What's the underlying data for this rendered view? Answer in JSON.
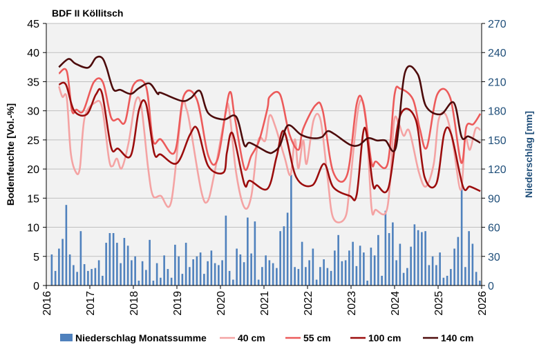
{
  "chart_data": {
    "type": "bar+line",
    "title": "BDF II Köllitsch",
    "ylabel": "Bodenfeuchte [Vol.-%]",
    "y2label": "Niederschlag [mm]",
    "xlim": [
      2016,
      2026
    ],
    "ylim": [
      0,
      45
    ],
    "y2lim": [
      0,
      270
    ],
    "x_ticks": [
      "2016",
      "2017",
      "2018",
      "2019",
      "2020",
      "2021",
      "2022",
      "2023",
      "2024",
      "2025",
      "2026"
    ],
    "y_ticks": [
      "0",
      "5",
      "10",
      "15",
      "20",
      "25",
      "30",
      "35",
      "40",
      "45"
    ],
    "y2_ticks": [
      "0",
      "30",
      "60",
      "90",
      "120",
      "150",
      "180",
      "210",
      "240",
      "270"
    ],
    "grid": true,
    "legend_placement": "bottom",
    "colors": {
      "plot_bg": "#f2f2f2",
      "grid": "#bfbfbf",
      "bars": "#4f81bd",
      "y2_axis": "#1f4e79"
    },
    "bars": {
      "name": "Niederschlag Monatssumme",
      "axis": "right",
      "start_month": "2016-02",
      "values": [
        32,
        15,
        38,
        48,
        83,
        32,
        21,
        14,
        56,
        22,
        15,
        17,
        18,
        26,
        10,
        44,
        54,
        54,
        44,
        23,
        49,
        41,
        26,
        30,
        5,
        25,
        16,
        47,
        5,
        23,
        8,
        31,
        17,
        8,
        42,
        30,
        12,
        44,
        19,
        27,
        30,
        34,
        12,
        25,
        36,
        23,
        21,
        26,
        72,
        15,
        6,
        38,
        32,
        24,
        70,
        33,
        66,
        6,
        19,
        31,
        26,
        23,
        18,
        56,
        61,
        75,
        114,
        19,
        17,
        45,
        19,
        26,
        38,
        6,
        19,
        27,
        18,
        15,
        36,
        52,
        25,
        26,
        36,
        45,
        20,
        41,
        34,
        5,
        39,
        31,
        52,
        10,
        77,
        54,
        65,
        26,
        43,
        13,
        18,
        40,
        63,
        57,
        55,
        56,
        21,
        30,
        21,
        34,
        8,
        10,
        17,
        38,
        50,
        101,
        19,
        56,
        43,
        14,
        5
      ]
    },
    "series": [
      {
        "name": "40 cm",
        "color": "#f4a3a3",
        "points": [
          [
            2016.29,
            34.2
          ],
          [
            2016.37,
            32.4
          ],
          [
            2016.47,
            32.2
          ],
          [
            2016.56,
            22.9
          ],
          [
            2016.67,
            19.6
          ],
          [
            2016.77,
            20.1
          ],
          [
            2016.88,
            28.8
          ],
          [
            2017.12,
            31.4
          ],
          [
            2017.28,
            30.6
          ],
          [
            2017.44,
            21.7
          ],
          [
            2017.52,
            20.5
          ],
          [
            2017.62,
            21.8
          ],
          [
            2017.73,
            20.1
          ],
          [
            2017.89,
            24.5
          ],
          [
            2018.05,
            31.6
          ],
          [
            2018.18,
            30.8
          ],
          [
            2018.34,
            20.1
          ],
          [
            2018.45,
            15.4
          ],
          [
            2018.63,
            15.4
          ],
          [
            2018.87,
            14.4
          ],
          [
            2019.11,
            30.4
          ],
          [
            2019.22,
            30.3
          ],
          [
            2019.32,
            26.7
          ],
          [
            2019.56,
            16.2
          ],
          [
            2019.7,
            14.4
          ],
          [
            2019.85,
            18.8
          ],
          [
            2020.12,
            29.6
          ],
          [
            2020.2,
            30.2
          ],
          [
            2020.36,
            19.4
          ],
          [
            2020.55,
            13.4
          ],
          [
            2020.71,
            15.4
          ],
          [
            2020.87,
            24.9
          ],
          [
            2021.03,
            24.9
          ],
          [
            2021.13,
            29.2
          ],
          [
            2021.26,
            27.3
          ],
          [
            2021.47,
            22.1
          ],
          [
            2021.61,
            19.0
          ],
          [
            2021.71,
            25.1
          ],
          [
            2021.79,
            20.1
          ],
          [
            2021.9,
            24.9
          ],
          [
            2021.98,
            20.9
          ],
          [
            2022.14,
            28.4
          ],
          [
            2022.3,
            28.4
          ],
          [
            2022.46,
            18.6
          ],
          [
            2022.59,
            11.6
          ],
          [
            2022.86,
            11.6
          ],
          [
            2022.97,
            17.0
          ],
          [
            2023.18,
            31.0
          ],
          [
            2023.34,
            28.8
          ],
          [
            2023.47,
            13.4
          ],
          [
            2023.57,
            13.0
          ],
          [
            2023.79,
            12.4
          ],
          [
            2023.89,
            17.0
          ],
          [
            2023.99,
            28.3
          ],
          [
            2024.1,
            27.7
          ],
          [
            2024.21,
            25.7
          ],
          [
            2024.34,
            26.5
          ],
          [
            2024.56,
            19.4
          ],
          [
            2024.72,
            17.0
          ],
          [
            2024.9,
            20.9
          ],
          [
            2025.01,
            28.4
          ],
          [
            2025.17,
            29.4
          ],
          [
            2025.33,
            24.9
          ],
          [
            2025.52,
            16.4
          ],
          [
            2025.62,
            25.1
          ],
          [
            2025.73,
            23.3
          ],
          [
            2025.86,
            26.9
          ],
          [
            2025.97,
            26.7
          ]
        ]
      },
      {
        "name": "55 cm",
        "color": "#ec5a5a",
        "points": [
          [
            2016.29,
            36.4
          ],
          [
            2016.47,
            36.8
          ],
          [
            2016.59,
            30.0
          ],
          [
            2016.69,
            30.2
          ],
          [
            2016.85,
            30.0
          ],
          [
            2017.09,
            34.9
          ],
          [
            2017.3,
            34.9
          ],
          [
            2017.49,
            28.8
          ],
          [
            2017.65,
            28.6
          ],
          [
            2017.81,
            28.1
          ],
          [
            2018.0,
            34.4
          ],
          [
            2018.29,
            34.2
          ],
          [
            2018.45,
            24.9
          ],
          [
            2018.63,
            25.1
          ],
          [
            2018.95,
            22.9
          ],
          [
            2019.16,
            32.6
          ],
          [
            2019.46,
            31.9
          ],
          [
            2019.72,
            22.3
          ],
          [
            2019.94,
            21.8
          ],
          [
            2020.2,
            33.0
          ],
          [
            2020.33,
            28.8
          ],
          [
            2020.55,
            20.1
          ],
          [
            2020.71,
            22.3
          ],
          [
            2020.89,
            24.9
          ],
          [
            2021.08,
            30.4
          ],
          [
            2021.13,
            32.4
          ],
          [
            2021.37,
            32.8
          ],
          [
            2021.58,
            26.1
          ],
          [
            2021.79,
            23.3
          ],
          [
            2021.9,
            26.9
          ],
          [
            2022.19,
            31.0
          ],
          [
            2022.35,
            30.0
          ],
          [
            2022.59,
            19.5
          ],
          [
            2022.91,
            19.0
          ],
          [
            2023.13,
            31.2
          ],
          [
            2023.28,
            31.2
          ],
          [
            2023.47,
            21.1
          ],
          [
            2023.57,
            21.3
          ],
          [
            2023.84,
            20.9
          ],
          [
            2024.0,
            32.8
          ],
          [
            2024.13,
            33.8
          ],
          [
            2024.42,
            32.0
          ],
          [
            2024.58,
            26.9
          ],
          [
            2024.74,
            23.7
          ],
          [
            2024.98,
            32.8
          ],
          [
            2025.28,
            32.2
          ],
          [
            2025.53,
            21.1
          ],
          [
            2025.65,
            27.3
          ],
          [
            2025.81,
            27.7
          ],
          [
            2025.97,
            29.5
          ]
        ]
      },
      {
        "name": "100 cm",
        "color": "#9b0d0d",
        "points": [
          [
            2016.29,
            34.5
          ],
          [
            2016.45,
            34.5
          ],
          [
            2016.64,
            30.0
          ],
          [
            2016.93,
            29.4
          ],
          [
            2017.14,
            32.8
          ],
          [
            2017.28,
            33.0
          ],
          [
            2017.49,
            23.7
          ],
          [
            2017.65,
            23.5
          ],
          [
            2017.94,
            22.3
          ],
          [
            2018.13,
            30.2
          ],
          [
            2018.29,
            31.2
          ],
          [
            2018.48,
            22.7
          ],
          [
            2018.63,
            22.5
          ],
          [
            2019.0,
            21.0
          ],
          [
            2019.3,
            25.9
          ],
          [
            2019.47,
            26.9
          ],
          [
            2019.72,
            20.5
          ],
          [
            2020.07,
            19.4
          ],
          [
            2020.15,
            22.9
          ],
          [
            2020.28,
            26.1
          ],
          [
            2020.55,
            17.4
          ],
          [
            2020.68,
            18.0
          ],
          [
            2021.08,
            16.6
          ],
          [
            2021.29,
            22.1
          ],
          [
            2021.46,
            26.5
          ],
          [
            2021.74,
            18.6
          ],
          [
            2022.11,
            17.2
          ],
          [
            2022.38,
            20.9
          ],
          [
            2022.59,
            16.9
          ],
          [
            2022.97,
            15.4
          ],
          [
            2023.13,
            15.6
          ],
          [
            2023.31,
            27.1
          ],
          [
            2023.5,
            17.4
          ],
          [
            2023.6,
            17.2
          ],
          [
            2023.86,
            16.8
          ],
          [
            2024.13,
            29.2
          ],
          [
            2024.48,
            28.6
          ],
          [
            2024.69,
            18.6
          ],
          [
            2024.96,
            17.5
          ],
          [
            2025.14,
            26.1
          ],
          [
            2025.3,
            26.0
          ],
          [
            2025.57,
            17.0
          ],
          [
            2025.73,
            17.0
          ],
          [
            2025.97,
            16.2
          ]
        ]
      },
      {
        "name": "140 cm",
        "color": "#4d0b0b",
        "points": [
          [
            2016.29,
            37.5
          ],
          [
            2016.51,
            38.9
          ],
          [
            2016.67,
            38.1
          ],
          [
            2016.96,
            37.4
          ],
          [
            2017.14,
            39.1
          ],
          [
            2017.28,
            39.1
          ],
          [
            2017.38,
            37.5
          ],
          [
            2017.54,
            33.7
          ],
          [
            2017.7,
            33.6
          ],
          [
            2017.94,
            32.9
          ],
          [
            2018.13,
            33.9
          ],
          [
            2018.37,
            34.7
          ],
          [
            2018.56,
            32.9
          ],
          [
            2018.63,
            33.1
          ],
          [
            2019.11,
            31.7
          ],
          [
            2019.32,
            32.2
          ],
          [
            2019.53,
            33.4
          ],
          [
            2019.72,
            29.6
          ],
          [
            2020.07,
            28.5
          ],
          [
            2020.36,
            29.0
          ],
          [
            2020.55,
            24.1
          ],
          [
            2020.68,
            24.5
          ],
          [
            2021.08,
            22.9
          ],
          [
            2021.21,
            22.9
          ],
          [
            2021.37,
            24.1
          ],
          [
            2021.55,
            27.5
          ],
          [
            2021.85,
            25.9
          ],
          [
            2022.11,
            25.3
          ],
          [
            2022.33,
            25.5
          ],
          [
            2022.46,
            26.5
          ],
          [
            2022.62,
            26.0
          ],
          [
            2022.97,
            24.2
          ],
          [
            2023.18,
            24.1
          ],
          [
            2023.39,
            25.3
          ],
          [
            2023.6,
            24.9
          ],
          [
            2023.79,
            24.9
          ],
          [
            2024.03,
            23.7
          ],
          [
            2024.24,
            36.6
          ],
          [
            2024.53,
            36.3
          ],
          [
            2024.72,
            30.8
          ],
          [
            2025.06,
            29.4
          ],
          [
            2025.36,
            31.4
          ],
          [
            2025.54,
            25.5
          ],
          [
            2025.7,
            25.6
          ],
          [
            2025.97,
            24.5
          ]
        ]
      }
    ]
  }
}
